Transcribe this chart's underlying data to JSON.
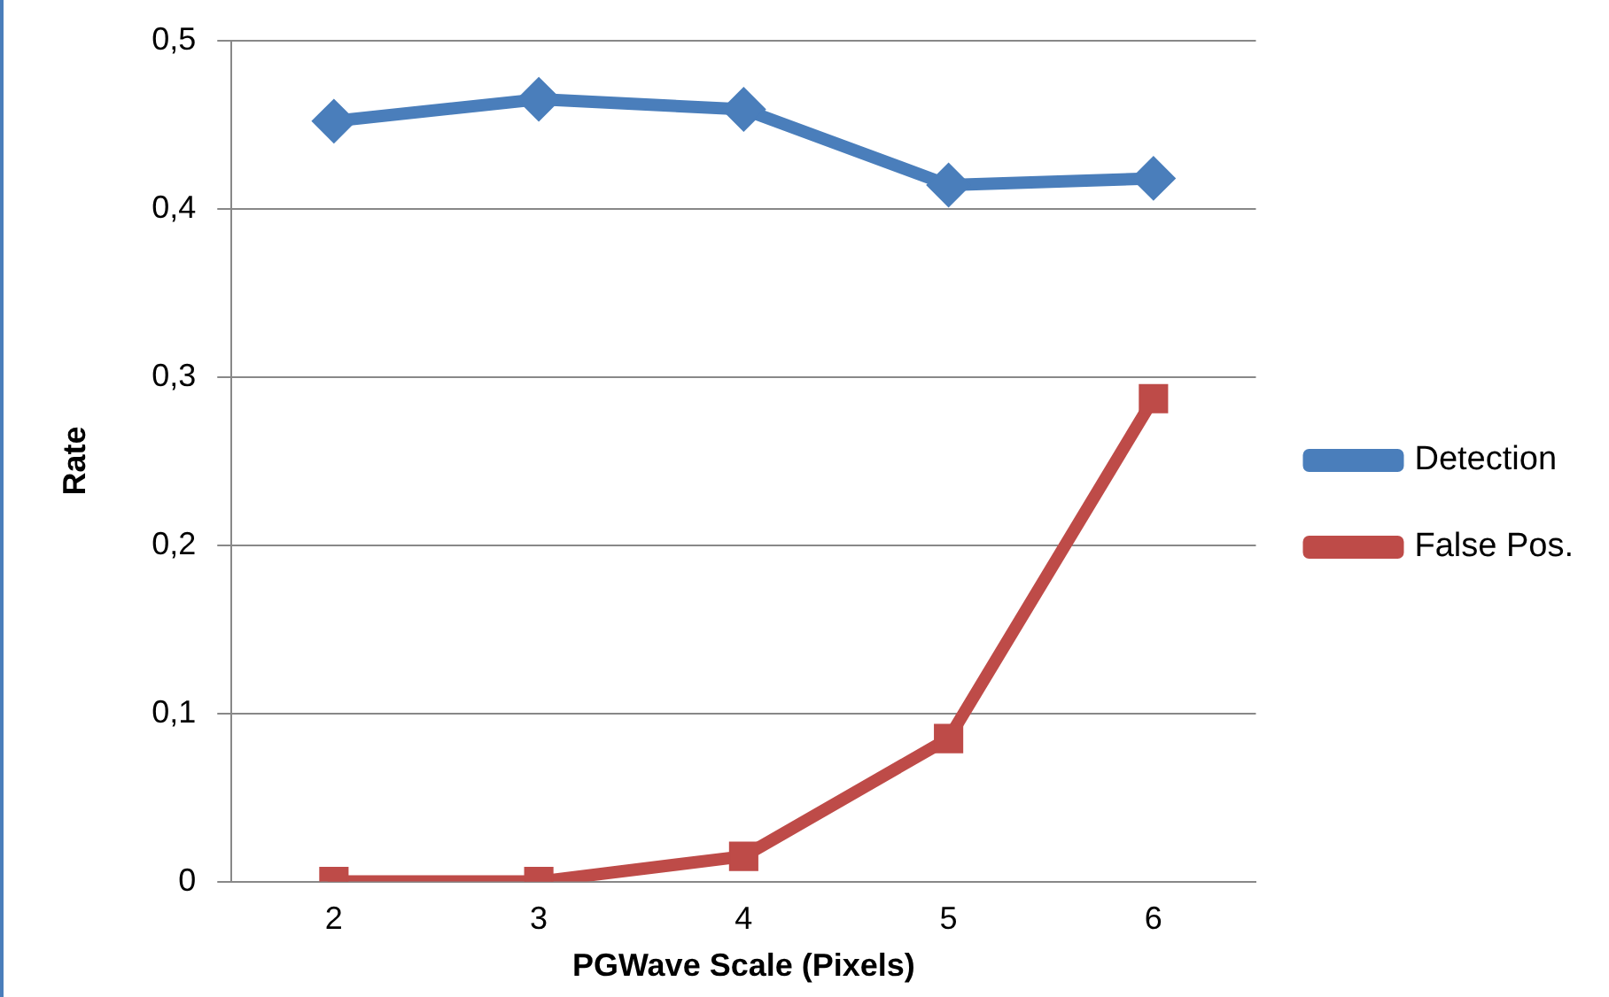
{
  "chart_data": {
    "type": "line",
    "xlabel": "PGWave Scale (Pixels)",
    "ylabel": "Rate",
    "categories": [
      "2",
      "3",
      "4",
      "5",
      "6"
    ],
    "series": [
      {
        "name": "Detection",
        "color": "#4a7ebb",
        "values": [
          0.452,
          0.465,
          0.459,
          0.414,
          0.418
        ],
        "marker": "diamond"
      },
      {
        "name": "False Pos.",
        "color": "#be4b48",
        "values": [
          0,
          0,
          0.015,
          0.085,
          0.287
        ],
        "marker": "square"
      }
    ],
    "ylim": [
      0,
      0.5
    ],
    "yticks": [
      0,
      {
        "value": 0.1,
        "label": "0,1"
      },
      {
        "value": 0.2,
        "label": "0,2"
      },
      {
        "value": 0.3,
        "label": "0,3"
      },
      {
        "value": 0.4,
        "label": "0,4"
      },
      {
        "value": 0.5,
        "label": "0,5"
      }
    ],
    "grid": "y",
    "legend": "right",
    "line_style": "solid"
  }
}
